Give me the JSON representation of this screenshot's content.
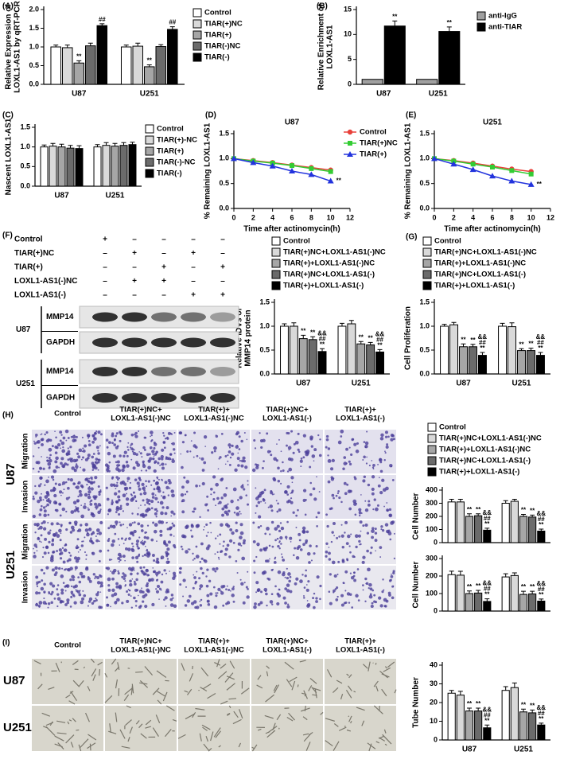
{
  "chart_data": [
    {
      "type": "bar",
      "label": "(A)",
      "ylabel": [
        "Relative Expression of",
        "LOXL1-AS1 by qRT-PCR"
      ],
      "categories": [
        "U87",
        "U251"
      ],
      "ylim": [
        0,
        2
      ],
      "yticks": [
        {
          "value": 0,
          "label": "0.0"
        },
        0.5,
        {
          "value": 1,
          "label": "1.0"
        },
        1.5,
        {
          "value": 2,
          "label": "2.0"
        }
      ],
      "series": [
        {
          "name": "Control",
          "color": "#ffffff",
          "values": [
            1.0,
            1.0
          ],
          "errors": [
            0.05,
            0.05
          ]
        },
        {
          "name": "TIAR(+)NC",
          "color": "#d9d9d9",
          "values": [
            0.98,
            1.02
          ],
          "errors": [
            0.07,
            0.08
          ]
        },
        {
          "name": "TIAR(+)",
          "color": "#a6a6a6",
          "values": [
            0.57,
            0.47
          ],
          "errors": [
            0.06,
            0.05
          ],
          "sig": [
            [
              "**"
            ],
            [
              "**"
            ]
          ]
        },
        {
          "name": "TIAR(-)NC",
          "color": "#6b6b6b",
          "values": [
            1.03,
            1.01
          ],
          "errors": [
            0.07,
            0.05
          ]
        },
        {
          "name": "TIAR(-)",
          "color": "#000000",
          "values": [
            1.57,
            1.47
          ],
          "errors": [
            0.05,
            0.07
          ],
          "sig": [
            [
              "##"
            ],
            [
              "##"
            ]
          ]
        }
      ]
    },
    {
      "type": "bar",
      "label": "(B)",
      "ylabel": [
        "Relative Enrichment of",
        "LOXL1-AS1"
      ],
      "categories": [
        "U87",
        "U251"
      ],
      "ylim": [
        0,
        15
      ],
      "yticks": [
        0,
        5,
        10,
        15
      ],
      "series": [
        {
          "name": "anti-IgG",
          "color": "#a0a0a0",
          "values": [
            1,
            1
          ]
        },
        {
          "name": "anti-TIAR",
          "color": "#000000",
          "values": [
            11.7,
            10.6
          ],
          "errors": [
            1.0,
            0.9
          ],
          "sig": [
            [
              "**"
            ],
            [
              "**"
            ]
          ]
        }
      ]
    },
    {
      "type": "bar",
      "label": "(C)",
      "ylabel": "Nascent LOXL1-AS1",
      "categories": [
        "U87",
        "U251"
      ],
      "ylim": [
        0,
        1.5
      ],
      "yticks": [
        {
          "value": 0,
          "label": "0.0"
        },
        0.5,
        {
          "value": 1,
          "label": "1.0"
        },
        1.5
      ],
      "series": [
        {
          "name": "Control",
          "color": "#ffffff",
          "values": [
            1.0,
            1.0
          ],
          "errors": [
            0.05,
            0.06
          ]
        },
        {
          "name": "TIAR(+)-NC",
          "color": "#d9d9d9",
          "values": [
            1.02,
            1.04
          ],
          "errors": [
            0.07,
            0.07
          ]
        },
        {
          "name": "TIAR(+)",
          "color": "#a6a6a6",
          "values": [
            1.0,
            1.02
          ],
          "errors": [
            0.07,
            0.07
          ]
        },
        {
          "name": "TIAR(-)-NC",
          "color": "#6b6b6b",
          "values": [
            0.97,
            1.04
          ],
          "errors": [
            0.07,
            0.07
          ]
        },
        {
          "name": "TIAR(-)",
          "color": "#000000",
          "values": [
            0.96,
            1.06
          ],
          "errors": [
            0.07,
            0.06
          ]
        }
      ]
    },
    {
      "type": "line",
      "label": "(D)",
      "title": "U87",
      "ylabel": "% Remaining LOXL1-AS1",
      "xlabel": "Time after actinomycin(h)",
      "x": [
        0,
        2,
        4,
        6,
        8,
        10
      ],
      "xlim": [
        0,
        12
      ],
      "xticks": [
        0,
        2,
        4,
        6,
        8,
        10,
        12
      ],
      "ylim": [
        0,
        1.5
      ],
      "yticks": [
        {
          "value": 0,
          "label": "0.0"
        },
        0.5,
        {
          "value": 1,
          "label": "1.0"
        },
        1.5
      ],
      "series": [
        {
          "name": "Control",
          "color": "#e8403a",
          "marker": "circle",
          "values": [
            1.0,
            0.96,
            0.92,
            0.87,
            0.82,
            0.77
          ]
        },
        {
          "name": "TIAR(+)NC",
          "color": "#33cc33",
          "marker": "square",
          "values": [
            1.0,
            0.95,
            0.91,
            0.86,
            0.8,
            0.74
          ]
        },
        {
          "name": "TIAR(+)",
          "color": "#2233dd",
          "marker": "triangle",
          "values": [
            1.0,
            0.92,
            0.85,
            0.75,
            0.68,
            0.55
          ],
          "sig": [
            null,
            null,
            null,
            null,
            null,
            [
              "**"
            ]
          ]
        }
      ]
    },
    {
      "type": "line",
      "label": "(E)",
      "title": "U251",
      "ylabel": "% Remaining LOXL1-AS1",
      "xlabel": "Time after actinomycin(h)",
      "x": [
        0,
        2,
        4,
        6,
        8,
        10
      ],
      "xlim": [
        0,
        12
      ],
      "xticks": [
        0,
        2,
        4,
        6,
        8,
        10,
        12
      ],
      "ylim": [
        0,
        1.5
      ],
      "yticks": [
        {
          "value": 0,
          "label": "0.0"
        },
        0.5,
        {
          "value": 1,
          "label": "1.0"
        },
        1.5
      ],
      "series": [
        {
          "color": "#e8403a",
          "marker": "circle",
          "values": [
            1.0,
            0.96,
            0.91,
            0.85,
            0.79,
            0.74
          ]
        },
        {
          "color": "#33cc33",
          "marker": "square",
          "values": [
            1.0,
            0.95,
            0.89,
            0.83,
            0.76,
            0.69
          ]
        },
        {
          "color": "#2233dd",
          "marker": "triangle",
          "values": [
            1.0,
            0.89,
            0.78,
            0.65,
            0.55,
            0.48
          ],
          "sig": [
            null,
            null,
            null,
            null,
            null,
            [
              "**"
            ]
          ]
        }
      ]
    },
    {
      "type": "bar",
      "ylabel": [
        "Relative IDVs of",
        "MMP14 protein"
      ],
      "categories": [
        "U87",
        "U251"
      ],
      "ylim": [
        0,
        1.5
      ],
      "yticks": [
        {
          "value": 0,
          "label": "0.0"
        },
        0.5,
        {
          "value": 1,
          "label": "1.0"
        },
        1.5
      ],
      "series": [
        {
          "name": "Control",
          "color": "#ffffff",
          "values": [
            1.0,
            1.0
          ],
          "errors": [
            0.05,
            0.06
          ]
        },
        {
          "name": "TIAR(+)NC+LOXL1-AS1(-)NC",
          "color": "#d9d9d9",
          "values": [
            1.0,
            1.05
          ],
          "errors": [
            0.07,
            0.07
          ]
        },
        {
          "name": "TIAR(+)+LOXL1-AS1(-)NC",
          "color": "#a6a6a6",
          "values": [
            0.74,
            0.63
          ],
          "errors": [
            0.07,
            0.05
          ],
          "sig": [
            [
              "**"
            ],
            [
              "**"
            ]
          ]
        },
        {
          "name": "TIAR(+)NC+LOXL1-AS1(-)",
          "color": "#6b6b6b",
          "values": [
            0.72,
            0.61
          ],
          "errors": [
            0.06,
            0.05
          ],
          "sig": [
            [
              "**"
            ],
            [
              "**"
            ]
          ]
        },
        {
          "name": "TIAR(+)+LOXL1-AS1(-)",
          "color": "#000000",
          "values": [
            0.47,
            0.46
          ],
          "errors": [
            0.06,
            0.05
          ],
          "sig": [
            [
              "&&",
              "##",
              "**"
            ],
            [
              "&&",
              "##",
              "**"
            ]
          ]
        }
      ]
    },
    {
      "type": "bar",
      "label": "(G)",
      "ylabel": "Cell Proliferation",
      "categories": [
        "U87",
        "U251"
      ],
      "ylim": [
        0,
        1.5
      ],
      "yticks": [
        {
          "value": 0,
          "label": "0.0"
        },
        0.5,
        {
          "value": 1,
          "label": "1.0"
        },
        1.5
      ],
      "series": [
        {
          "name": "Control",
          "color": "#ffffff",
          "values": [
            1.0,
            1.0
          ],
          "errors": [
            0.04,
            0.06
          ]
        },
        {
          "name": "TIAR(+)NC+LOXL1-AS1(-)NC",
          "color": "#d9d9d9",
          "values": [
            1.03,
            0.99
          ],
          "errors": [
            0.05,
            0.08
          ]
        },
        {
          "name": "TIAR(+)+LOXL1-AS1(-)NC",
          "color": "#a6a6a6",
          "values": [
            0.57,
            0.49
          ],
          "errors": [
            0.06,
            0.04
          ],
          "sig": [
            [
              "**"
            ],
            [
              "**"
            ]
          ]
        },
        {
          "name": "TIAR(+)NC+LOXL1-AS1(-)",
          "color": "#6b6b6b",
          "values": [
            0.57,
            0.49
          ],
          "errors": [
            0.05,
            0.05
          ],
          "sig": [
            [
              "**"
            ],
            [
              "**"
            ]
          ]
        },
        {
          "name": "TIAR(+)+LOXL1-AS1(-)",
          "color": "#000000",
          "values": [
            0.39,
            0.39
          ],
          "errors": [
            0.06,
            0.06
          ],
          "sig": [
            [
              "&&",
              "##",
              "**"
            ],
            [
              "&&",
              "##",
              "**"
            ]
          ]
        }
      ]
    },
    {
      "type": "bar",
      "ylabel": "Cell Number",
      "categories": [
        null,
        null
      ],
      "ylim": [
        0,
        400
      ],
      "yticks": [
        0,
        100,
        200,
        300,
        400
      ],
      "series": [
        {
          "name": "Control",
          "color": "#ffffff",
          "values": [
            310,
            300
          ],
          "errors": [
            20,
            20
          ]
        },
        {
          "name": "TIAR(+)NC+LOXL1-AS1(-)NC",
          "color": "#d9d9d9",
          "values": [
            310,
            315
          ],
          "errors": [
            20,
            15
          ]
        },
        {
          "name": "TIAR(+)+LOXL1-AS1(-)NC",
          "color": "#a6a6a6",
          "values": [
            200,
            200
          ],
          "errors": [
            20,
            15
          ],
          "sig": [
            [
              "**"
            ],
            [
              "**"
            ]
          ]
        },
        {
          "name": "TIAR(+)NC+LOXL1-AS1(-)",
          "color": "#6b6b6b",
          "values": [
            205,
            195
          ],
          "errors": [
            15,
            15
          ],
          "sig": [
            [
              "**"
            ],
            [
              "**"
            ]
          ]
        },
        {
          "name": "TIAR(+)+LOXL1-AS1(-)",
          "color": "#000000",
          "values": [
            95,
            88
          ],
          "errors": [
            15,
            15
          ],
          "sig": [
            [
              "&&",
              "##",
              "**"
            ],
            [
              "&&",
              "##",
              "**"
            ]
          ]
        }
      ]
    },
    {
      "type": "bar",
      "ylabel": "Cell Number",
      "categories": [
        null,
        null
      ],
      "ylim": [
        0,
        300
      ],
      "yticks": [
        0,
        100,
        200,
        300
      ],
      "series": [
        {
          "color": "#ffffff",
          "values": [
            208,
            195
          ],
          "errors": [
            20,
            18
          ]
        },
        {
          "color": "#d9d9d9",
          "values": [
            205,
            203
          ],
          "errors": [
            22,
            15
          ]
        },
        {
          "color": "#a6a6a6",
          "values": [
            100,
            95
          ],
          "errors": [
            15,
            18
          ],
          "sig": [
            [
              "**"
            ],
            [
              "**"
            ]
          ]
        },
        {
          "color": "#6b6b6b",
          "values": [
            103,
            98
          ],
          "errors": [
            15,
            15
          ],
          "sig": [
            [
              "**"
            ],
            [
              "**"
            ]
          ]
        },
        {
          "color": "#000000",
          "values": [
            55,
            57
          ],
          "errors": [
            15,
            12
          ],
          "sig": [
            [
              "&&",
              "##",
              "**"
            ],
            [
              "&&",
              "##",
              "**"
            ]
          ]
        }
      ]
    },
    {
      "type": "bar",
      "ylabel": "Tube Number",
      "categories": [
        "U87",
        "U251"
      ],
      "ylim": [
        0,
        40
      ],
      "yticks": [
        0,
        10,
        20,
        30,
        40
      ],
      "series": [
        {
          "color": "#ffffff",
          "values": [
            25,
            26.5
          ],
          "errors": [
            1.5,
            2
          ]
        },
        {
          "color": "#d9d9d9",
          "values": [
            24,
            28
          ],
          "errors": [
            2,
            2.5
          ]
        },
        {
          "color": "#a6a6a6",
          "values": [
            15.5,
            15
          ],
          "errors": [
            1.5,
            1.5
          ],
          "sig": [
            [
              "**"
            ],
            [
              "**"
            ]
          ]
        },
        {
          "color": "#6b6b6b",
          "values": [
            15.5,
            14.5
          ],
          "errors": [
            1.5,
            1.5
          ],
          "sig": [
            [
              "**"
            ],
            [
              "**"
            ]
          ]
        },
        {
          "color": "#000000",
          "values": [
            6.5,
            8
          ],
          "errors": [
            1.5,
            1.0
          ],
          "sig": [
            [
              "&&",
              "##",
              "**"
            ],
            [
              "&&",
              "##",
              "**"
            ]
          ]
        }
      ]
    }
  ],
  "blot": {
    "label": "(F)",
    "conditions": [
      "Control",
      "TIAR(+)NC",
      "TIAR(+)",
      "LOXL1-AS1(-)NC",
      "LOXL1-AS1(-)"
    ],
    "signs": [
      [
        "+",
        "–",
        "–",
        "–",
        "–"
      ],
      [
        "–",
        "+",
        "–",
        "+",
        "–"
      ],
      [
        "–",
        "–",
        "+",
        "–",
        "+"
      ],
      [
        "–",
        "+",
        "+",
        "–",
        "–"
      ],
      [
        "–",
        "–",
        "–",
        "+",
        "+"
      ]
    ],
    "cells": [
      "U87",
      "U251"
    ],
    "bands": [
      "MMP14",
      "GAPDH"
    ]
  },
  "migration_panel": {
    "label": "(H)",
    "columns": [
      [
        "Control"
      ],
      [
        "TIAR(+)NC+",
        "LOXL1-AS1(-)NC"
      ],
      [
        "TIAR(+)+",
        "LOXL1-AS1(-)NC"
      ],
      [
        "TIAR(+)NC+",
        "LOXL1-AS1(-)"
      ],
      [
        "TIAR(+)+",
        "LOXL1-AS1(-)"
      ]
    ],
    "cells": [
      "U87",
      "U251"
    ],
    "assays": [
      "Migration",
      "Invasion"
    ]
  },
  "tube_panel": {
    "label": "(I)",
    "columns": [
      [
        "Control"
      ],
      [
        "TIAR(+)NC+",
        "LOXL1-AS1(-)NC"
      ],
      [
        "TIAR(+)+",
        "LOXL1-AS1(-)NC"
      ],
      [
        "TIAR(+)NC+",
        "LOXL1-AS1(-)"
      ],
      [
        "TIAR(+)+",
        "LOXL1-AS1(-)"
      ]
    ],
    "cells": [
      "U87",
      "U251"
    ]
  }
}
